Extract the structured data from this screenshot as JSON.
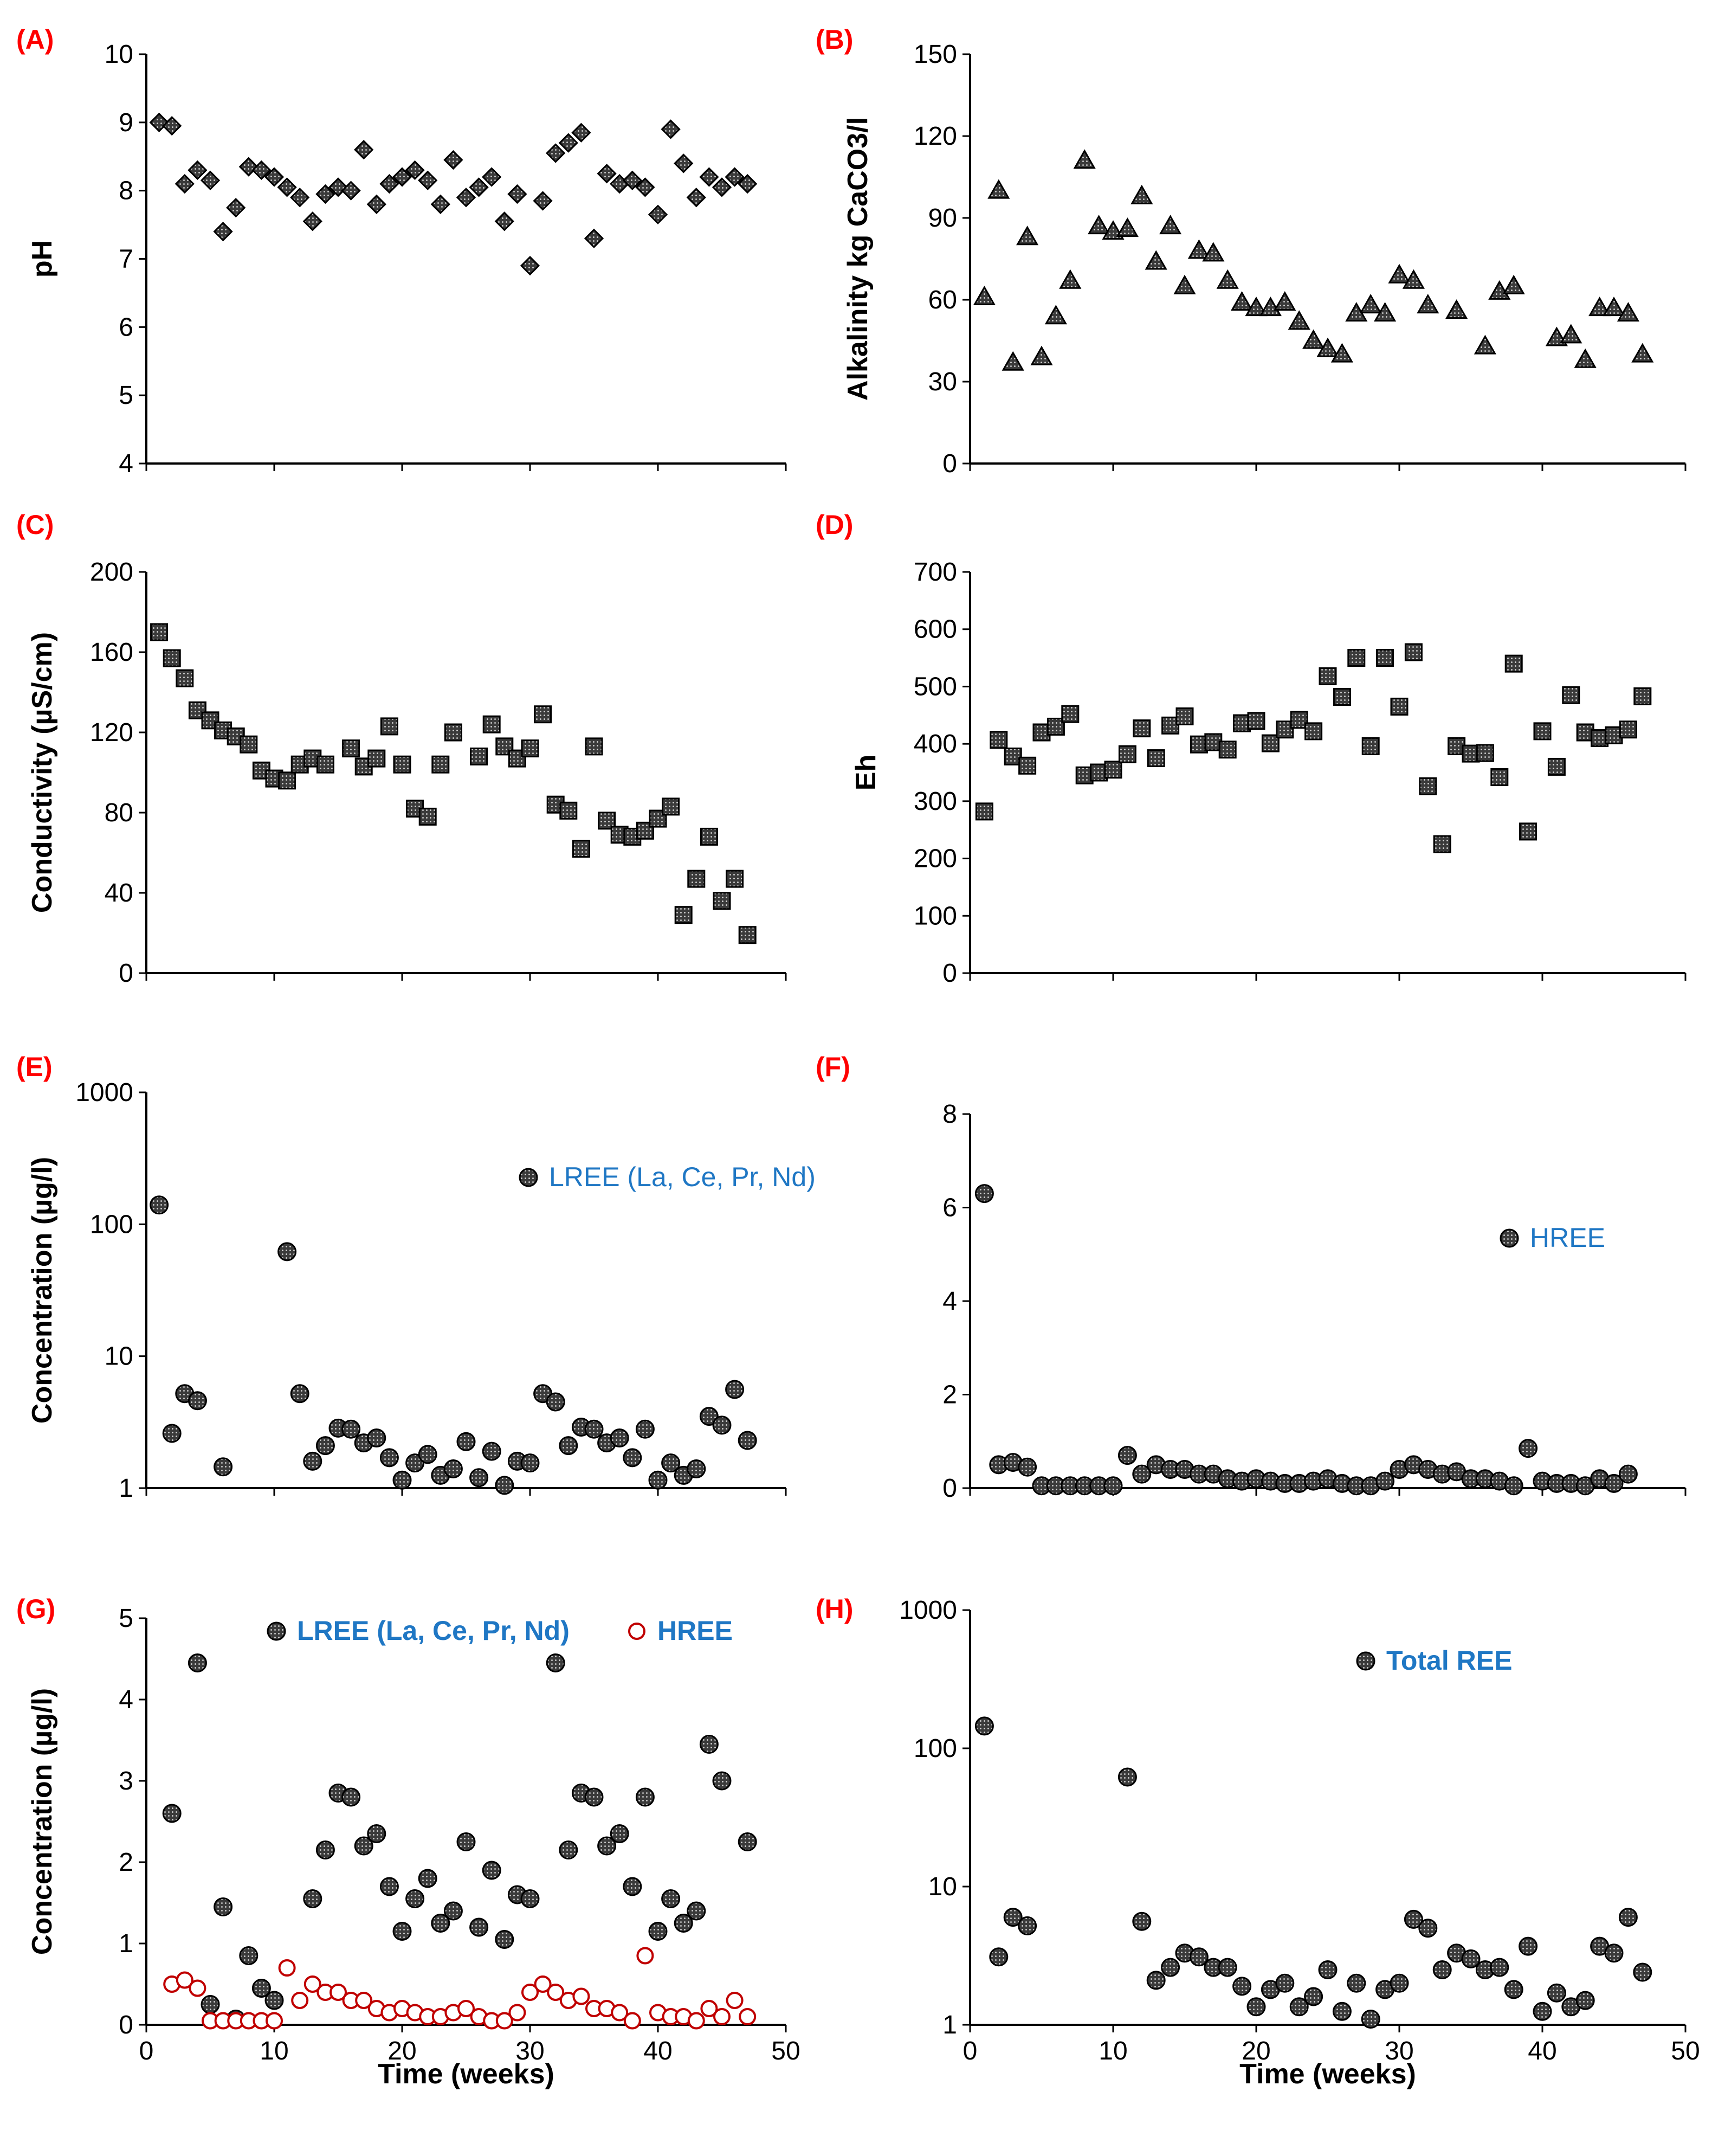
{
  "colors": {
    "marker_fill": "#1a1a1a",
    "panel_label": "#ff0000",
    "legend_text": "#1f77c4",
    "hree_open_marker": "#c00000"
  },
  "chart_data": [
    {
      "id": "A",
      "panel_label": "(A)",
      "type": "scatter",
      "marker": "diamond",
      "xlabel": "",
      "ylabel": "pH",
      "xlim": [
        0,
        50
      ],
      "ylim": [
        4,
        10
      ],
      "yticks": [
        4,
        5,
        6,
        7,
        8,
        9,
        10
      ],
      "xticks": [],
      "yscale": "linear",
      "grid": false,
      "series": [
        {
          "x": [
            1,
            2,
            3,
            4,
            5,
            6,
            7,
            8,
            9,
            10,
            11,
            12,
            13,
            14,
            15,
            16,
            17,
            18,
            19,
            20,
            21,
            22,
            23,
            24,
            25,
            26,
            27,
            28,
            29,
            30,
            31,
            32,
            33,
            34,
            35,
            36,
            37,
            38,
            39,
            40,
            41,
            42,
            43,
            44,
            45,
            46,
            47
          ],
          "y": [
            9.0,
            8.95,
            8.1,
            8.3,
            8.15,
            7.4,
            7.75,
            8.35,
            8.3,
            8.2,
            8.05,
            7.9,
            7.55,
            7.95,
            8.05,
            8.0,
            8.6,
            7.8,
            8.1,
            8.2,
            8.3,
            8.15,
            7.8,
            8.45,
            7.9,
            8.05,
            8.2,
            7.55,
            7.95,
            6.9,
            7.85,
            8.55,
            8.7,
            8.85,
            7.3,
            8.25,
            8.1,
            8.15,
            8.05,
            7.65,
            8.9,
            8.4,
            7.9,
            8.2,
            8.05,
            8.2,
            8.1
          ]
        }
      ]
    },
    {
      "id": "B",
      "panel_label": "(B)",
      "type": "scatter",
      "marker": "triangle",
      "xlabel": "",
      "ylabel": "Alkalinity kg CaCO3/l",
      "xlim": [
        0,
        50
      ],
      "ylim": [
        0,
        150
      ],
      "yticks": [
        0,
        30,
        60,
        90,
        120,
        150
      ],
      "xticks": [],
      "yscale": "linear",
      "grid": false,
      "series": [
        {
          "x": [
            1,
            2,
            3,
            4,
            5,
            6,
            7,
            8,
            9,
            10,
            11,
            12,
            13,
            14,
            15,
            16,
            17,
            18,
            19,
            20,
            21,
            22,
            23,
            24,
            25,
            26,
            27,
            28,
            29,
            30,
            31,
            32,
            34,
            36,
            37,
            38,
            41,
            42,
            43,
            44,
            45,
            46,
            47
          ],
          "y": [
            61,
            100,
            37,
            83,
            39,
            54,
            67,
            111,
            87,
            85,
            86,
            98,
            74,
            87,
            65,
            78,
            77,
            67,
            59,
            57,
            57,
            59,
            52,
            45,
            42,
            40,
            55,
            58,
            55,
            69,
            67,
            58,
            56,
            43,
            63,
            65,
            46,
            47,
            38,
            57,
            57,
            55,
            40
          ]
        }
      ]
    },
    {
      "id": "C",
      "panel_label": "(C)",
      "type": "scatter",
      "marker": "square",
      "xlabel": "",
      "ylabel": "Conductivity (µS/cm)",
      "xlim": [
        0,
        50
      ],
      "ylim": [
        0,
        200
      ],
      "yticks": [
        0,
        40,
        80,
        120,
        160,
        200
      ],
      "xticks": [],
      "yscale": "linear",
      "grid": false,
      "series": [
        {
          "x": [
            1,
            2,
            3,
            4,
            5,
            6,
            7,
            8,
            9,
            10,
            11,
            12,
            13,
            14,
            16,
            17,
            18,
            19,
            20,
            21,
            22,
            23,
            24,
            26,
            27,
            28,
            29,
            30,
            31,
            32,
            33,
            34,
            35,
            36,
            37,
            38,
            39,
            40,
            41,
            42,
            43,
            44,
            45,
            46,
            47
          ],
          "y": [
            170,
            157,
            147,
            131,
            126,
            121,
            118,
            114,
            101,
            97,
            96,
            104,
            107,
            104,
            112,
            103,
            107,
            123,
            104,
            82,
            78,
            104,
            120,
            108,
            124,
            113,
            107,
            112,
            129,
            84,
            81,
            62,
            113,
            76,
            69,
            68,
            71,
            77,
            83,
            29,
            47,
            68,
            36,
            47,
            19
          ]
        }
      ]
    },
    {
      "id": "D",
      "panel_label": "(D)",
      "type": "scatter",
      "marker": "square",
      "xlabel": "",
      "ylabel": "Eh",
      "xlim": [
        0,
        50
      ],
      "ylim": [
        0,
        700
      ],
      "yticks": [
        0,
        100,
        200,
        300,
        400,
        500,
        600,
        700
      ],
      "xticks": [],
      "yscale": "linear",
      "grid": false,
      "series": [
        {
          "x": [
            1,
            2,
            3,
            4,
            5,
            6,
            7,
            8,
            9,
            10,
            11,
            12,
            13,
            14,
            15,
            16,
            17,
            18,
            19,
            20,
            21,
            22,
            23,
            24,
            25,
            26,
            27,
            28,
            29,
            30,
            31,
            32,
            33,
            34,
            35,
            36,
            37,
            38,
            39,
            40,
            41,
            42,
            43,
            44,
            45,
            46,
            47
          ],
          "y": [
            282,
            407,
            378,
            362,
            420,
            430,
            452,
            345,
            350,
            355,
            382,
            427,
            375,
            432,
            448,
            399,
            403,
            390,
            436,
            440,
            401,
            425,
            442,
            422,
            518,
            482,
            550,
            396,
            550,
            465,
            560,
            326,
            225,
            396,
            383,
            384,
            342,
            540,
            247,
            422,
            360,
            485,
            420,
            410,
            415,
            425,
            483
          ]
        }
      ]
    },
    {
      "id": "E",
      "panel_label": "(E)",
      "type": "scatter",
      "marker": "dotted-circle",
      "xlabel": "",
      "ylabel": "Concentration (µg/l)",
      "xlim": [
        0,
        50
      ],
      "ylim": [
        1,
        1000
      ],
      "yticks": [
        1,
        10,
        100,
        1000
      ],
      "xticks": [],
      "yscale": "log",
      "grid": false,
      "series": [
        {
          "name": "LREE (La, Ce, Pr, Nd)",
          "x": [
            1,
            2,
            3,
            4,
            6,
            11,
            12,
            13,
            14,
            15,
            16,
            17,
            18,
            19,
            20,
            21,
            22,
            23,
            24,
            25,
            26,
            27,
            28,
            29,
            30,
            31,
            32,
            33,
            34,
            35,
            36,
            37,
            38,
            39,
            40,
            41,
            42,
            43,
            44,
            45,
            46,
            47
          ],
          "y": [
            140,
            2.6,
            5.2,
            4.6,
            1.45,
            62,
            5.2,
            1.6,
            2.1,
            2.85,
            2.8,
            2.2,
            2.4,
            1.7,
            1.15,
            1.55,
            1.8,
            1.25,
            1.4,
            2.25,
            1.2,
            1.9,
            1.05,
            1.6,
            1.55,
            5.2,
            4.5,
            2.1,
            2.9,
            2.8,
            2.2,
            2.4,
            1.7,
            2.8,
            1.15,
            1.55,
            1.25,
            1.4,
            3.5,
            3.0,
            5.6,
            2.3
          ]
        }
      ]
    },
    {
      "id": "F",
      "panel_label": "(F)",
      "type": "scatter",
      "marker": "dotted-circle",
      "xlabel": "",
      "ylabel": "",
      "xlim": [
        0,
        50
      ],
      "ylim": [
        0,
        8
      ],
      "yticks": [
        0,
        2,
        4,
        6,
        8
      ],
      "xticks": [],
      "yscale": "linear",
      "grid": false,
      "series": [
        {
          "name": "HREE",
          "x": [
            1,
            2,
            3,
            4,
            5,
            6,
            7,
            8,
            9,
            10,
            11,
            12,
            13,
            14,
            15,
            16,
            17,
            18,
            19,
            20,
            21,
            22,
            23,
            24,
            25,
            26,
            27,
            28,
            29,
            30,
            31,
            32,
            33,
            34,
            35,
            36,
            37,
            38,
            39,
            40,
            41,
            42,
            43,
            44,
            45,
            46
          ],
          "y": [
            6.3,
            0.5,
            0.55,
            0.45,
            0.05,
            0.05,
            0.05,
            0.05,
            0.05,
            0.05,
            0.7,
            0.3,
            0.5,
            0.4,
            0.4,
            0.3,
            0.3,
            0.2,
            0.15,
            0.2,
            0.15,
            0.1,
            0.1,
            0.15,
            0.2,
            0.1,
            0.05,
            0.05,
            0.15,
            0.4,
            0.5,
            0.4,
            0.3,
            0.35,
            0.2,
            0.2,
            0.15,
            0.05,
            0.85,
            0.15,
            0.1,
            0.1,
            0.05,
            0.2,
            0.1,
            0.3
          ]
        }
      ]
    },
    {
      "id": "G",
      "panel_label": "(G)",
      "type": "scatter",
      "marker": "dotted-circle",
      "xlabel": "Time (weeks)",
      "ylabel": "Concentration (µg/l)",
      "xlim": [
        0,
        50
      ],
      "ylim": [
        0,
        5
      ],
      "yticks": [
        0,
        1,
        2,
        3,
        4,
        5
      ],
      "xticks": [
        0,
        10,
        20,
        30,
        40,
        50
      ],
      "yscale": "linear",
      "grid": false,
      "series": [
        {
          "name": "LREE (La, Ce, Pr, Nd)",
          "marker": "dotted-circle",
          "x": [
            2,
            4,
            5,
            6,
            7,
            8,
            9,
            10,
            13,
            14,
            15,
            16,
            17,
            18,
            19,
            20,
            21,
            22,
            23,
            24,
            25,
            26,
            27,
            28,
            29,
            30,
            32,
            33,
            34,
            35,
            36,
            37,
            38,
            39,
            40,
            41,
            42,
            43,
            44,
            45,
            47
          ],
          "y": [
            2.6,
            4.45,
            0.25,
            1.45,
            0.07,
            0.85,
            0.45,
            0.3,
            1.55,
            2.15,
            2.85,
            2.8,
            2.2,
            2.35,
            1.7,
            1.15,
            1.55,
            1.8,
            1.25,
            1.4,
            2.25,
            1.2,
            1.9,
            1.05,
            1.6,
            1.55,
            4.45,
            2.15,
            2.85,
            2.8,
            2.2,
            2.35,
            1.7,
            2.8,
            1.15,
            1.55,
            1.25,
            1.4,
            3.45,
            3.0,
            2.25
          ]
        },
        {
          "name": "HREE",
          "marker": "open-circle",
          "x": [
            2,
            3,
            4,
            5,
            6,
            7,
            8,
            9,
            10,
            11,
            12,
            13,
            14,
            15,
            16,
            17,
            18,
            19,
            20,
            21,
            22,
            23,
            24,
            25,
            26,
            27,
            28,
            29,
            30,
            31,
            32,
            33,
            34,
            35,
            36,
            37,
            38,
            39,
            40,
            41,
            42,
            43,
            44,
            45,
            46,
            47
          ],
          "y": [
            0.5,
            0.55,
            0.45,
            0.05,
            0.05,
            0.05,
            0.05,
            0.05,
            0.05,
            0.7,
            0.3,
            0.5,
            0.4,
            0.4,
            0.3,
            0.3,
            0.2,
            0.15,
            0.2,
            0.15,
            0.1,
            0.1,
            0.15,
            0.2,
            0.1,
            0.05,
            0.05,
            0.15,
            0.4,
            0.5,
            0.4,
            0.3,
            0.35,
            0.2,
            0.2,
            0.15,
            0.05,
            0.85,
            0.15,
            0.1,
            0.1,
            0.05,
            0.2,
            0.1,
            0.3,
            0.1
          ]
        }
      ]
    },
    {
      "id": "H",
      "panel_label": "(H)",
      "type": "scatter",
      "marker": "dotted-circle",
      "xlabel": "Time (weeks)",
      "ylabel": "",
      "xlim": [
        0,
        50
      ],
      "ylim": [
        1,
        1000
      ],
      "yticks": [
        1,
        10,
        100,
        1000
      ],
      "xticks": [
        0,
        10,
        20,
        30,
        40,
        50
      ],
      "yscale": "log",
      "grid": false,
      "series": [
        {
          "name": "Total REE",
          "x": [
            1,
            2,
            3,
            4,
            11,
            12,
            13,
            14,
            15,
            16,
            17,
            18,
            19,
            20,
            21,
            22,
            23,
            24,
            25,
            26,
            27,
            28,
            29,
            30,
            31,
            32,
            33,
            34,
            35,
            36,
            37,
            38,
            39,
            40,
            41,
            42,
            43,
            44,
            45,
            46,
            47
          ],
          "y": [
            145,
            3.1,
            6.0,
            5.2,
            62,
            5.6,
            2.1,
            2.6,
            3.3,
            3.1,
            2.6,
            2.6,
            1.9,
            1.35,
            1.8,
            2.0,
            1.35,
            1.6,
            2.5,
            1.25,
            2.0,
            1.1,
            1.8,
            2.0,
            5.8,
            5.0,
            2.5,
            3.3,
            3.0,
            2.5,
            2.6,
            1.8,
            3.7,
            1.25,
            1.7,
            1.35,
            1.5,
            3.7,
            3.3,
            6.0,
            2.4
          ]
        }
      ]
    }
  ]
}
